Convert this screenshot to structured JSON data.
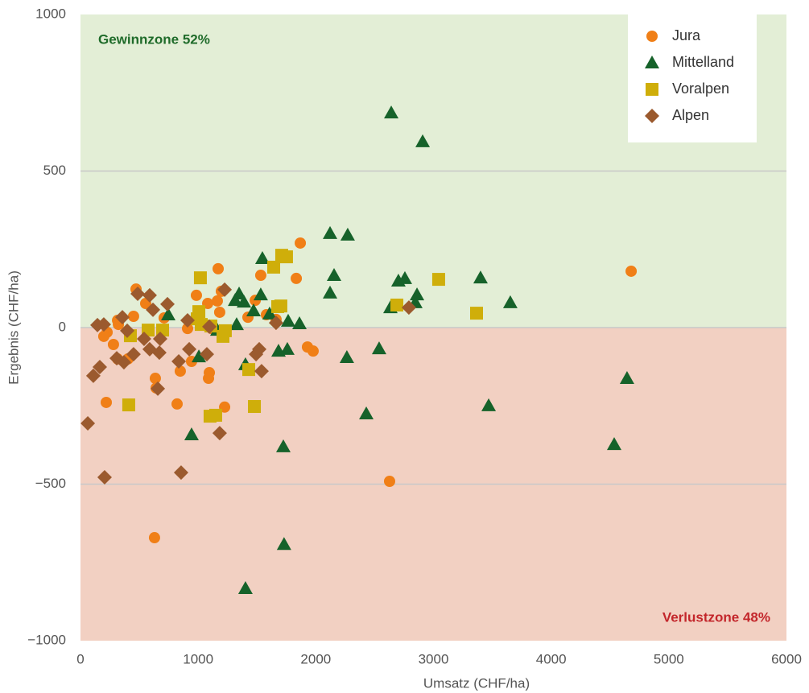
{
  "chart_data": {
    "type": "scatter",
    "xlabel": "Umsatz (CHF/ha)",
    "ylabel": "Ergebnis (CHF/ha)",
    "annotations": [
      {
        "text": "Gewinnzone 52%",
        "color": "#1f6b2a"
      },
      {
        "text": "Verlustzone 48%",
        "color": "#c3262b"
      }
    ],
    "xlim": [
      0,
      6000
    ],
    "xticks": [
      0,
      1000,
      2000,
      3000,
      4000,
      5000,
      6000
    ],
    "ylim": [
      -1000,
      1000
    ],
    "yticks": [
      {
        "value": -1000,
        "label": "−1000"
      },
      {
        "value": -500,
        "label": "−500"
      },
      0,
      500,
      1000
    ],
    "grid": true,
    "legend": "upper right",
    "series": [
      {
        "name": "Jura",
        "color": "#f07f17",
        "marker": "circle",
        "x": [
          4680,
          2627,
          629,
          1868,
          1834,
          1532,
          1170,
          1197,
          1183,
          1081,
          985,
          472,
          554,
          451,
          315,
          322,
          226,
          198,
          280,
          315,
          404,
          711,
          910,
          944,
          848,
          1095,
          1088,
          636,
          643,
          219,
          821,
          1225,
          1423,
          1485,
          1580,
          1662,
          1929,
          1977,
          1115,
          1163
        ],
        "y": [
          180,
          -491,
          -671,
          270,
          157,
          167,
          188,
          116,
          49,
          77,
          103,
          123,
          77,
          36,
          23,
          10,
          -15,
          -28,
          -54,
          -100,
          -100,
          31,
          -3,
          -108,
          -139,
          -144,
          -162,
          -162,
          -193,
          -239,
          -244,
          -254,
          33,
          87,
          41,
          26,
          -62,
          -75,
          -3,
          85
        ]
      },
      {
        "name": "Mittelland",
        "color": "#16622a",
        "marker": "triangle",
        "x": [
          2641,
          2908,
          2121,
          2271,
          2155,
          2121,
          2702,
          2757,
          2860,
          2846,
          2634,
          3400,
          3653,
          1546,
          1532,
          1348,
          1314,
          1389,
          1471,
          1607,
          1765,
          1861,
          1327,
          1163,
          746,
          1006,
          1683,
          1758,
          2264,
          2538,
          1402,
          2429,
          3469,
          4645,
          4536,
          944,
          1724,
          1730,
          1402
        ],
        "y": [
          686,
          594,
          301,
          296,
          167,
          111,
          149,
          157,
          105,
          80,
          64,
          159,
          80,
          221,
          105,
          108,
          87,
          82,
          54,
          44,
          21,
          13,
          10,
          -8,
          41,
          -93,
          -75,
          -69,
          -95,
          -67,
          -118,
          -275,
          -249,
          -162,
          -373,
          -342,
          -380,
          -692,
          -833
        ]
      },
      {
        "name": "Voralpen",
        "color": "#cfae0a",
        "marker": "square",
        "x": [
          3044,
          3366,
          2689,
          1710,
          1751,
          1642,
          1676,
          1703,
          1019,
          1006,
          992,
          1026,
          1108,
          1211,
          698,
          575,
          424,
          1231,
          1430,
          1478,
          410,
          1101,
          1149
        ],
        "y": [
          154,
          46,
          72,
          231,
          226,
          193,
          67,
          69,
          159,
          51,
          28,
          10,
          5,
          -28,
          -8,
          -8,
          -26,
          -10,
          -134,
          -252,
          -247,
          -283,
          -280
        ]
      },
      {
        "name": "Alpen",
        "color": "#9b5a2e",
        "marker": "diamond",
        "x": [
          2791,
          62,
          205,
          855,
          1183,
          657,
          109,
          164,
          308,
          369,
          451,
          588,
          670,
          835,
          924,
          1074,
          1539,
          1492,
          1519,
          739,
          588,
          486,
          616,
          356,
          144,
          198,
          397,
          540,
          677,
          910,
          1095,
          1225,
          1662
        ],
        "y": [
          64,
          -306,
          -478,
          -463,
          -337,
          -195,
          -154,
          -126,
          -98,
          -111,
          -85,
          -69,
          -80,
          -108,
          -69,
          -85,
          -139,
          -85,
          -69,
          75,
          103,
          108,
          57,
          33,
          8,
          10,
          -10,
          -36,
          -36,
          23,
          3,
          121,
          15
        ]
      }
    ]
  }
}
